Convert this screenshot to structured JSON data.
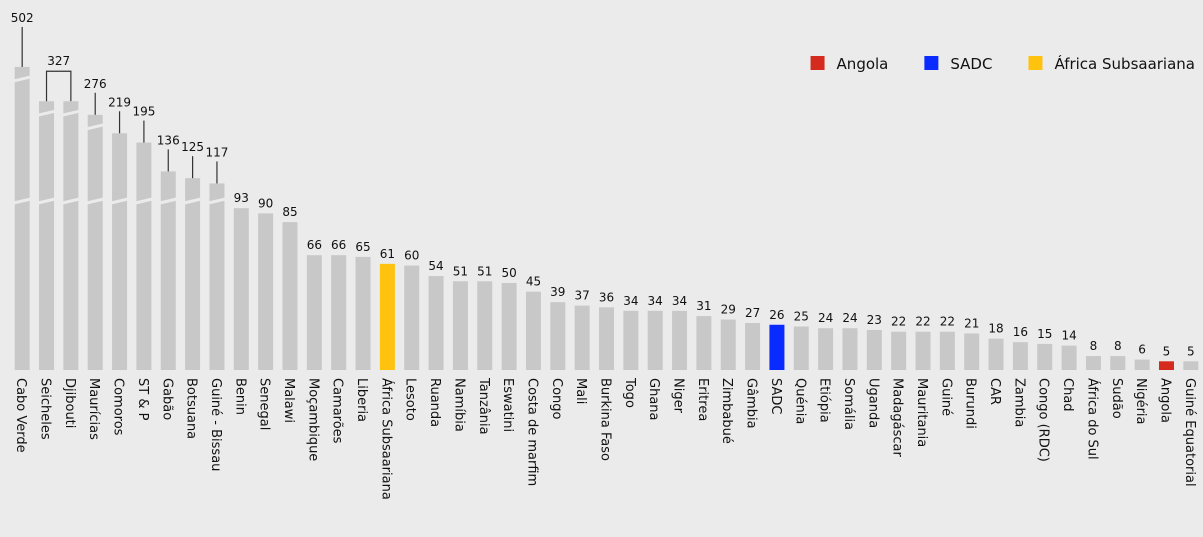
{
  "chart_data": {
    "type": "bar",
    "categories": [
      "Cabo Verde",
      "Seicheles",
      "Djibouti",
      "Maurícias",
      "Comoros",
      "ST & P",
      "Gabão",
      "Botsuana",
      "Guiné - Bissau",
      "Benin",
      "Senegal",
      "Malawi",
      "Moçambique",
      "Camarões",
      "Liberia",
      "África Subsaariana",
      "Lesoto",
      "Ruanda",
      "Namíbia",
      "Tanzânia",
      "Eswatini",
      "Costa de marfim",
      "Congo",
      "Mali",
      "Burkina Faso",
      "Togo",
      "Ghana",
      "Niger",
      "Eritrea",
      "Zimbabué",
      "Gâmbia",
      "SADC",
      "Quénia",
      "Etiópia",
      "Somália",
      "Uganda",
      "Madagáscar",
      "Mauritania",
      "Guiné",
      "Burundi",
      "CAR",
      "Zambia",
      "Congo (RDC)",
      "Chad",
      "África do Sul",
      "Sudão",
      "Nigéria",
      "Angola",
      "Guiné Equatorial"
    ],
    "values": [
      502,
      327,
      327,
      276,
      219,
      195,
      136,
      125,
      117,
      93,
      90,
      85,
      66,
      66,
      65,
      61,
      60,
      54,
      51,
      51,
      50,
      45,
      39,
      37,
      36,
      34,
      34,
      34,
      31,
      29,
      27,
      26,
      25,
      24,
      24,
      23,
      22,
      22,
      22,
      21,
      18,
      16,
      15,
      14,
      8,
      8,
      6,
      5,
      5
    ],
    "value_labels": [
      "502",
      "327",
      null,
      "276",
      "219",
      "195",
      "136",
      "125",
      "117",
      "93",
      "90",
      "85",
      "66",
      "66",
      "65",
      "61",
      "60",
      "54",
      "51",
      "51",
      "50",
      "45",
      "39",
      "37",
      "36",
      "34",
      "34",
      "34",
      "31",
      "29",
      "27",
      "26",
      "25",
      "24",
      "24",
      "23",
      "22",
      "22",
      "22",
      "21",
      "18",
      "16",
      "15",
      "14",
      "8",
      "8",
      "6",
      "5",
      "5"
    ],
    "color": "#c8c8c8",
    "legend": [
      {
        "name": "Angola",
        "color": "#d52b1e"
      },
      {
        "name": "SADC",
        "color": "#0a2bff"
      },
      {
        "name": "África Subsaariana",
        "color": "#ffc20e"
      }
    ],
    "legend_position": "upper right"
  }
}
